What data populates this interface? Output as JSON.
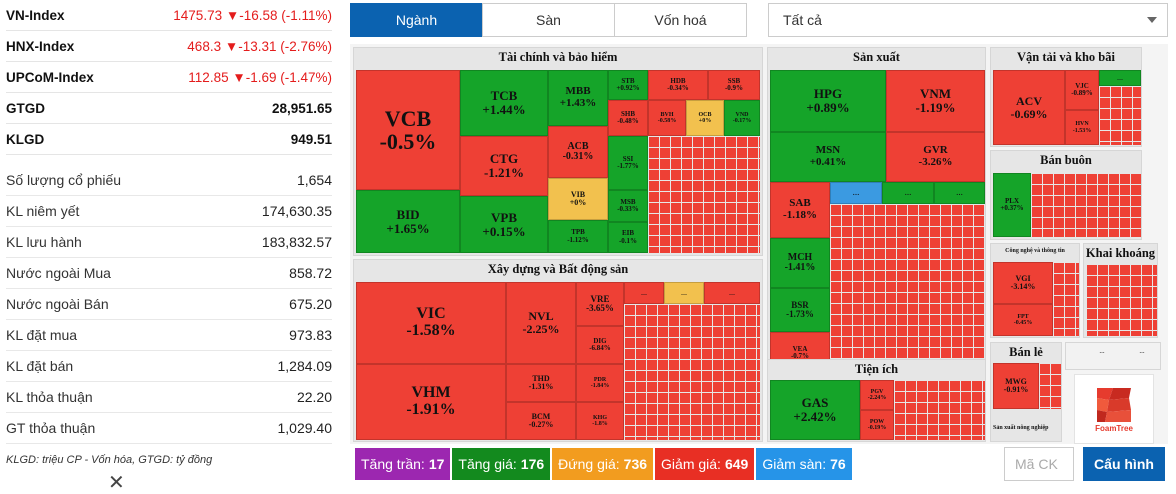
{
  "indices": [
    {
      "name": "VN-Index",
      "value": "1475.73 ▼-16.58 (-1.11%)"
    },
    {
      "name": "HNX-Index",
      "value": "468.3 ▼-13.31 (-2.76%)"
    },
    {
      "name": "UPCoM-Index",
      "value": "112.85 ▼-1.69 (-1.47%)"
    }
  ],
  "totals": [
    {
      "name": "GTGD",
      "value": "28,951.65"
    },
    {
      "name": "KLGD",
      "value": "949.51"
    }
  ],
  "stats": [
    {
      "label": "Số lượng cổ phiếu",
      "value": "1,654"
    },
    {
      "label": "KL niêm yết",
      "value": "174,630.35"
    },
    {
      "label": "KL lưu hành",
      "value": "183,832.57"
    },
    {
      "label": "Nước ngoài Mua",
      "value": "858.72"
    },
    {
      "label": "Nước ngoài Bán",
      "value": "675.20"
    },
    {
      "label": "KL đặt mua",
      "value": "973.83"
    },
    {
      "label": "KL đặt bán",
      "value": "1,284.09"
    },
    {
      "label": "KL thỏa thuận",
      "value": "22.20"
    },
    {
      "label": "GT thỏa thuận",
      "value": "1,029.40"
    }
  ],
  "note": "KLGD: triệu CP - Vốn hóa, GTGD: tỷ đồng",
  "close_glyph": "✕",
  "tabs": [
    "Ngành",
    "Sàn",
    "Vốn hoá"
  ],
  "filter": {
    "selected": "Tất cả"
  },
  "sectors": {
    "taichinh": "Tài chính và bảo hiểm",
    "sanxuat": "Sản xuất",
    "vantai": "Vận tải và kho bãi",
    "xaydung": "Xây dựng và Bất động sản",
    "banbuon": "Bán buôn",
    "congnghe": "Công nghệ và thông tin",
    "khaikhoang": "Khai khoáng",
    "tienich": "Tiện ích",
    "banle": "Bán lẻ",
    "sxnn": "Sản xuất nông nghiệp"
  },
  "tiles": {
    "vcb": {
      "t": "VCB",
      "p": "-0.5%"
    },
    "tcb": {
      "t": "TCB",
      "p": "+1.44%"
    },
    "mbb": {
      "t": "MBB",
      "p": "+1.43%"
    },
    "stb": {
      "t": "STB",
      "p": "+0.92%"
    },
    "hdb": {
      "t": "HDB",
      "p": "-0.34%"
    },
    "ssb": {
      "t": "SSB",
      "p": "-0.9%"
    },
    "ctg": {
      "t": "CTG",
      "p": "-1.21%"
    },
    "acb": {
      "t": "ACB",
      "p": "-0.31%"
    },
    "shb": {
      "t": "SHB",
      "p": "-0.48%"
    },
    "bvh": {
      "t": "BVH",
      "p": "-0.58%"
    },
    "ocb": {
      "t": "OCB",
      "p": "+0%"
    },
    "vnd": {
      "t": "VND",
      "p": "-0.17%"
    },
    "ssi": {
      "t": "SSI",
      "p": "-1.77%"
    },
    "bid": {
      "t": "BID",
      "p": "+1.65%"
    },
    "vpb": {
      "t": "VPB",
      "p": "+0.15%"
    },
    "vib": {
      "t": "VIB",
      "p": "+0%"
    },
    "msb": {
      "t": "MSB",
      "p": "-0.33%"
    },
    "tpb": {
      "t": "TPB",
      "p": "-1.12%"
    },
    "eib": {
      "t": "EIB",
      "p": "-0.1%"
    },
    "hpg": {
      "t": "HPG",
      "p": "+0.89%"
    },
    "vnm": {
      "t": "VNM",
      "p": "-1.19%"
    },
    "msn": {
      "t": "MSN",
      "p": "+0.41%"
    },
    "gvr": {
      "t": "GVR",
      "p": "-3.26%"
    },
    "sab": {
      "t": "SAB",
      "p": "-1.18%"
    },
    "mch": {
      "t": "MCH",
      "p": "-1.41%"
    },
    "bsr": {
      "t": "BSR",
      "p": "-1.73%"
    },
    "vea": {
      "t": "VEA",
      "p": "-0.7%"
    },
    "acv": {
      "t": "ACV",
      "p": "-0.69%"
    },
    "vjc": {
      "t": "VJC",
      "p": "-0.89%"
    },
    "hvn": {
      "t": "HVN",
      "p": "-1.53%"
    },
    "plx": {
      "t": "PLX",
      "p": "+0.37%"
    },
    "vgi": {
      "t": "VGI",
      "p": "-3.14%"
    },
    "fpt": {
      "t": "FPT",
      "p": "-0.45%"
    },
    "vic": {
      "t": "VIC",
      "p": "-1.58%"
    },
    "vhm": {
      "t": "VHM",
      "p": "-1.91%"
    },
    "nvl": {
      "t": "NVL",
      "p": "-2.25%"
    },
    "thd": {
      "t": "THD",
      "p": "-1.31%"
    },
    "bcm": {
      "t": "BCM",
      "p": "-0.27%"
    },
    "vre": {
      "t": "VRE",
      "p": "-3.65%"
    },
    "dig": {
      "t": "DIG",
      "p": "-6.84%"
    },
    "pdr": {
      "t": "PDR",
      "p": "-1.84%"
    },
    "khg": {
      "t": "KHG",
      "p": "-1.8%"
    },
    "gas": {
      "t": "GAS",
      "p": "+2.42%"
    },
    "pgv": {
      "t": "PGV",
      "p": "-2.24%"
    },
    "pow": {
      "t": "POW",
      "p": "-0.19%"
    },
    "mwg": {
      "t": "MWG",
      "p": "-0.91%"
    }
  },
  "more_glyph": "...",
  "legend": [
    {
      "label": "Tăng trần:",
      "count": "17",
      "color": "#9c27b0"
    },
    {
      "label": "Tăng giá:",
      "count": "176",
      "color": "#138a1e"
    },
    {
      "label": "Đứng giá:",
      "count": "736",
      "color": "#f29c1f"
    },
    {
      "label": "Giảm giá:",
      "count": "649",
      "color": "#e82f24"
    },
    {
      "label": "Giảm sàn:",
      "count": "76",
      "color": "#2694e8"
    }
  ],
  "search": {
    "placeholder": "Mã CK"
  },
  "config_button": "Cấu hình",
  "logo_text": "FoamTree"
}
